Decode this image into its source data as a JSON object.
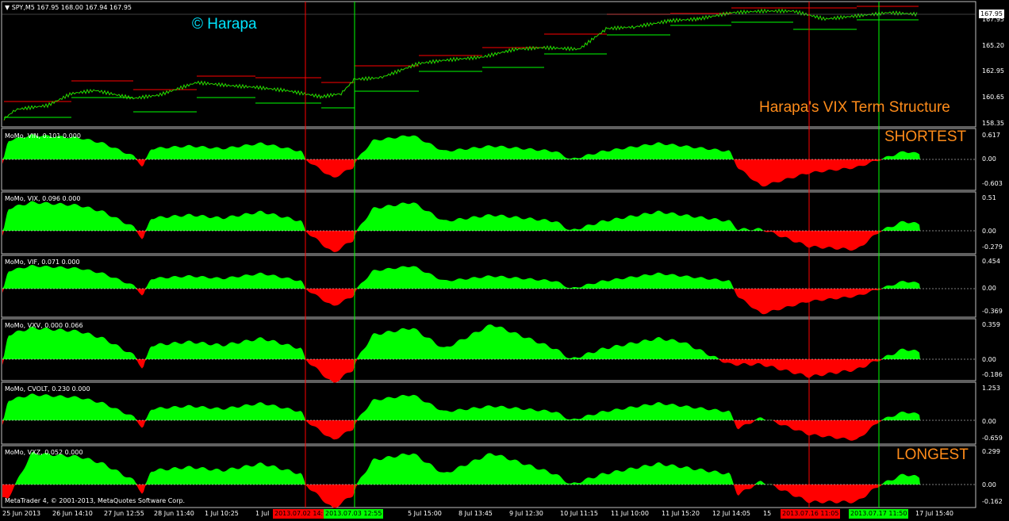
{
  "symbol_header": "SPY,M5  167.95 168.00 167.94 167.95",
  "watermark": "© Harapa",
  "study_title": "Harapa's VIX Term Structure",
  "shortest_label": "SHORTEST",
  "longest_label": "LONGEST",
  "current_price": "167.95",
  "copyright": "MetaTrader 4, © 2001-2013, MetaQuotes Software Corp.",
  "colors": {
    "positive": "#00ff00",
    "negative": "#ff0000",
    "price_high": "#ff0000",
    "price_low": "#00ff00",
    "annotation": "#ff8c1a",
    "watermark": "#00e5ff"
  },
  "price_axis": [
    "167.95",
    "165.20",
    "162.95",
    "160.65",
    "158.35"
  ],
  "indicators": [
    {
      "header": "MoMo, VIN, 0.101 0.000",
      "axis_top": "0.617",
      "axis_zero": "0.00",
      "axis_bottom": "-0.603"
    },
    {
      "header": "MoMo, VIX, 0.096 0.000",
      "axis_top": "0.51",
      "axis_zero": "0.00",
      "axis_bottom": "-0.279"
    },
    {
      "header": "MoMo, VIF, 0.071 0.000",
      "axis_top": "0.454",
      "axis_zero": "0.00",
      "axis_bottom": "-0.369"
    },
    {
      "header": "MoMo, VXV, 0.000 0.066",
      "axis_top": "0.359",
      "axis_zero": "0.00",
      "axis_bottom": "-0.186"
    },
    {
      "header": "MoMo, CVOLT, 0.230 0.000",
      "axis_top": "1.253",
      "axis_zero": "0.00",
      "axis_bottom": "-0.659"
    },
    {
      "header": "MoMo, VXZ, 0.052 0.000",
      "axis_top": "0.299",
      "axis_zero": "0.00",
      "axis_bottom": "-0.162"
    }
  ],
  "time_axis": [
    "25 Jun 2013",
    "26 Jun 14:10",
    "27 Jun 12:55",
    "28 Jun 11:40",
    "1 Jul 10:25",
    "1 Jul",
    "5 Jul 15:00",
    "8 Jul 13:45",
    "9 Jul 12:30",
    "10 Jul 11:15",
    "11 Jul 10:00",
    "11 Jul 15:20",
    "12 Jul 14:05",
    "15",
    "17 Jul 15:40"
  ],
  "time_highlights": [
    {
      "label": "2013.07.02 14:",
      "color": "#ff0000"
    },
    {
      "label": "2013.07.03 12:55",
      "color": "#00ff00"
    },
    {
      "label": "2013.07.16 11:05",
      "color": "#ff0000"
    },
    {
      "label": "2013.07.17 11:50",
      "color": "#00ff00"
    }
  ]
}
